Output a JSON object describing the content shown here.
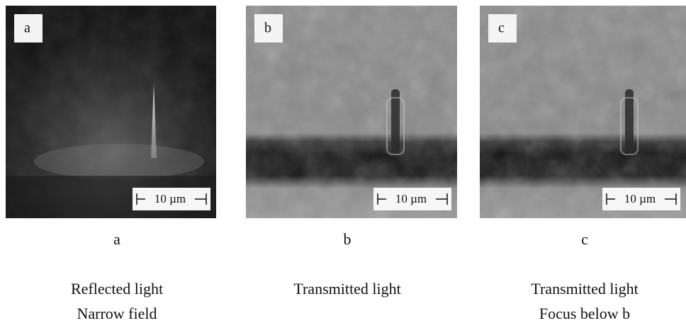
{
  "panels": [
    {
      "label": "a",
      "scale_bar": "10 µm",
      "caption": "a",
      "description": [
        "Reflected light",
        "Narrow field"
      ]
    },
    {
      "label": "b",
      "scale_bar": "10 µm",
      "caption": "b",
      "description": [
        "Transmitted light"
      ]
    },
    {
      "label": "c",
      "scale_bar": "10 µm",
      "caption": "c",
      "description": [
        "Transmitted light",
        "Focus below b"
      ]
    }
  ]
}
